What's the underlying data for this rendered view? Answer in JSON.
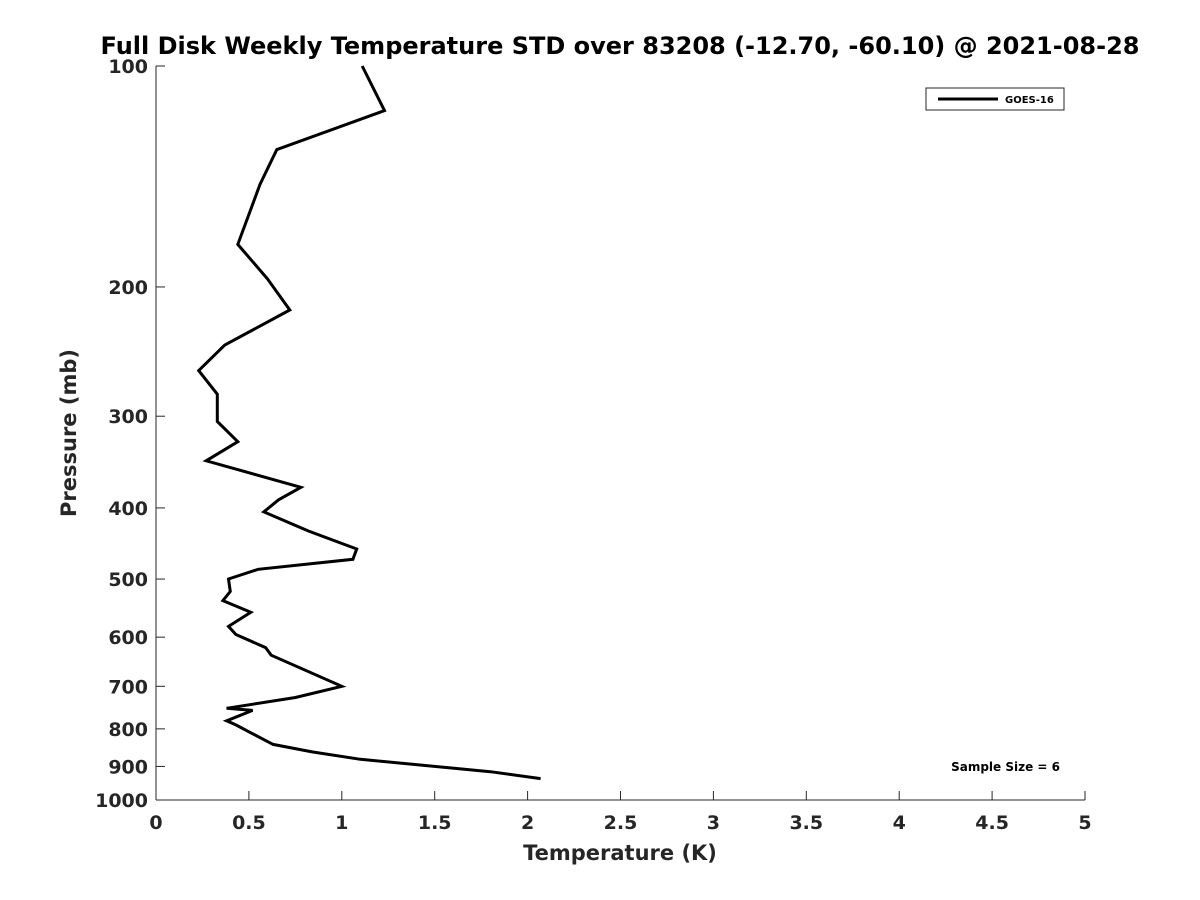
{
  "chart_data": {
    "type": "line",
    "title": "Full Disk Weekly Temperature STD over 83208 (-12.70, -60.10) @ 2021-08-28",
    "xlabel": "Temperature (K)",
    "ylabel": "Pressure (mb)",
    "xlim": [
      0,
      5
    ],
    "ylim": [
      100,
      1000
    ],
    "y_scale": "log",
    "y_reversed": true,
    "grid": false,
    "legend_position": "top-right",
    "x_ticks": [
      0,
      0.5,
      1,
      1.5,
      2,
      2.5,
      3,
      3.5,
      4,
      4.5,
      5
    ],
    "x_tick_labels": [
      "0",
      "0.5",
      "1",
      "1.5",
      "2",
      "2.5",
      "3",
      "3.5",
      "4",
      "4.5",
      "5"
    ],
    "y_ticks": [
      100,
      200,
      300,
      400,
      500,
      600,
      700,
      800,
      900,
      1000
    ],
    "y_tick_labels": [
      "100",
      "200",
      "300",
      "400",
      "500",
      "600",
      "700",
      "800",
      "900",
      "1000"
    ],
    "series": [
      {
        "name": "GOES-16",
        "color": "#000000",
        "x": [
          1.11,
          1.23,
          0.65,
          0.56,
          0.44,
          0.6,
          0.72,
          0.37,
          0.23,
          0.33,
          0.33,
          0.44,
          0.27,
          0.78,
          0.66,
          0.58,
          0.82,
          1.08,
          1.06,
          0.55,
          0.39,
          0.4,
          0.36,
          0.51,
          0.39,
          0.43,
          0.59,
          0.62,
          1.0,
          0.75,
          0.38,
          0.52,
          0.38,
          0.43,
          0.51,
          0.63,
          0.84,
          1.1,
          1.8,
          2.07
        ],
        "y": [
          100,
          115,
          130,
          145,
          175,
          195,
          215,
          240,
          260,
          280,
          305,
          325,
          345,
          375,
          390,
          405,
          430,
          455,
          470,
          485,
          500,
          520,
          535,
          555,
          580,
          595,
          620,
          635,
          700,
          725,
          750,
          755,
          780,
          790,
          810,
          840,
          860,
          880,
          915,
          935
        ]
      }
    ],
    "annotations": [
      "Sample Size = 6"
    ]
  }
}
